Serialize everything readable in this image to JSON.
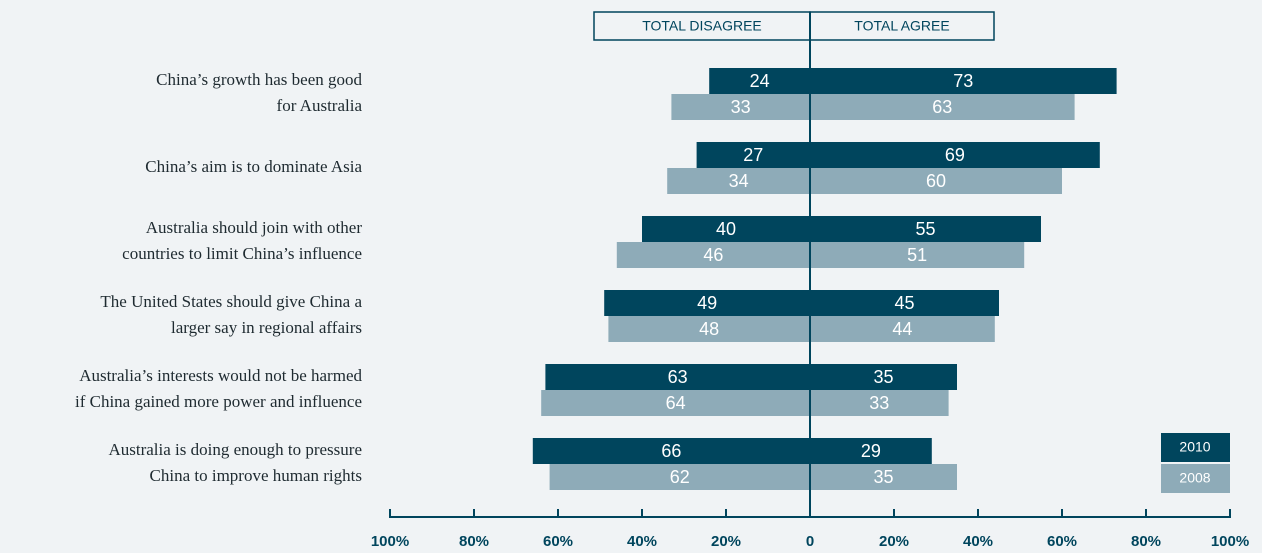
{
  "chart_data": {
    "type": "diverging-bar",
    "left_header": "TOTAL DISAGREE",
    "right_header": "TOTAL AGREE",
    "categories": [
      [
        "China’s growth has been good",
        "for Australia"
      ],
      [
        "China’s aim is to dominate Asia"
      ],
      [
        "Australia should join with other",
        "countries to limit China’s influence"
      ],
      [
        "The United States should give China a",
        "larger say in regional affairs"
      ],
      [
        "Australia’s interests would not be harmed",
        "if China gained more power and influence"
      ],
      [
        "Australia is doing enough to pressure",
        "China to improve human rights"
      ]
    ],
    "series": [
      {
        "name": "2010",
        "color": "#00455d",
        "disagree": [
          24,
          27,
          40,
          49,
          63,
          66
        ],
        "agree": [
          73,
          69,
          55,
          45,
          35,
          29
        ]
      },
      {
        "name": "2008",
        "color": "#8eabb8",
        "disagree": [
          33,
          34,
          46,
          48,
          64,
          62
        ],
        "agree": [
          63,
          60,
          51,
          44,
          33,
          35
        ]
      }
    ],
    "xlim": [
      -100,
      100
    ],
    "xticks": [
      {
        "value": -100,
        "label": "100%"
      },
      {
        "value": -80,
        "label": "80%"
      },
      {
        "value": -60,
        "label": "60%"
      },
      {
        "value": -40,
        "label": "40%"
      },
      {
        "value": -20,
        "label": "20%"
      },
      0,
      {
        "value": 20,
        "label": "20%"
      },
      {
        "value": 40,
        "label": "40%"
      },
      {
        "value": 60,
        "label": "60%"
      },
      {
        "value": 80,
        "label": "80%"
      },
      {
        "value": 100,
        "label": "100%"
      }
    ],
    "legend": "lower right"
  }
}
